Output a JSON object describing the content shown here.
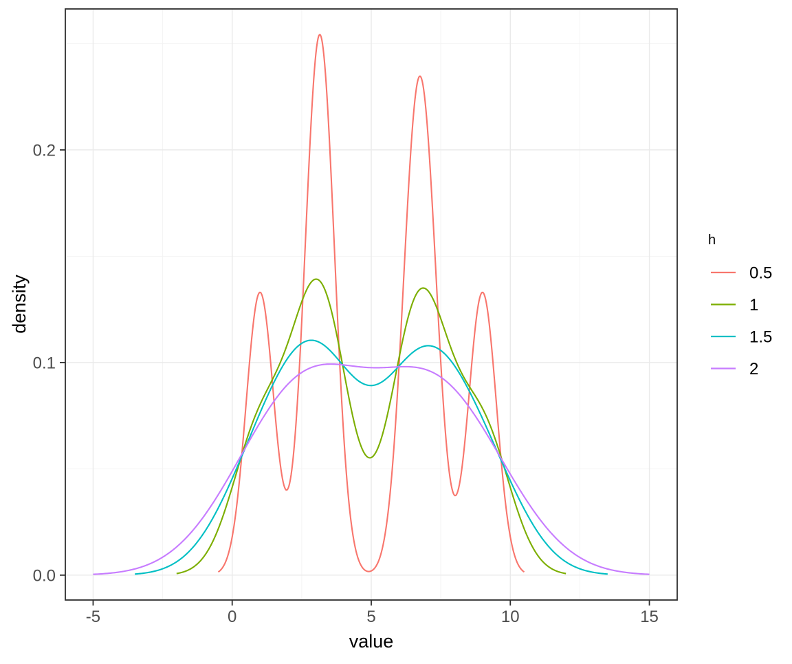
{
  "chart_data": {
    "type": "line",
    "title": "",
    "xlabel": "value",
    "ylabel": "density",
    "xlim": [
      -6,
      16
    ],
    "ylim": [
      -0.0117,
      0.2663
    ],
    "x_major_ticks": [
      -5,
      0,
      5,
      10,
      15
    ],
    "x_tick_labels": [
      "-5",
      "0",
      "5",
      "10",
      "15"
    ],
    "x_minor_ticks": [
      -2.5,
      2.5,
      7.5,
      12.5
    ],
    "y_major_ticks": [
      0,
      0.1,
      0.2
    ],
    "y_tick_labels": [
      "0.0",
      "0.1",
      "0.2"
    ],
    "y_minor_ticks": [
      0.05,
      0.15,
      0.25
    ],
    "grid": "major+minor",
    "legend": {
      "title": "h",
      "position": "right",
      "entries": [
        {
          "label": "0.5",
          "color": "#F8766D"
        },
        {
          "label": "1",
          "color": "#7CAE00"
        },
        {
          "label": "1.5",
          "color": "#00BFC4"
        },
        {
          "label": "2",
          "color": "#C77CFF"
        }
      ]
    },
    "kde": {
      "kernel": "gaussian",
      "data_points": [
        1,
        3,
        3.3,
        6.5,
        7,
        9
      ],
      "series": [
        {
          "label": "0.5",
          "h": 0.5,
          "color": "#F8766D",
          "x_range": [
            -0.5,
            10.5
          ],
          "peaks_xy": [
            [
              1.0,
              0.133
            ],
            [
              3.15,
              0.254
            ],
            [
              6.75,
              0.235
            ],
            [
              9.0,
              0.133
            ]
          ],
          "dips_xy": [
            [
              2.0,
              0.04
            ],
            [
              4.95,
              0.002
            ],
            [
              8.0,
              0.037
            ]
          ]
        },
        {
          "label": "1",
          "h": 1.0,
          "color": "#7CAE00",
          "x_range": [
            -2,
            12
          ],
          "peaks_xy": [
            [
              3.05,
              0.139
            ],
            [
              6.85,
              0.135
            ]
          ],
          "dips_xy": [
            [
              5.05,
              0.055
            ]
          ]
        },
        {
          "label": "1.5",
          "h": 1.5,
          "color": "#00BFC4",
          "x_range": [
            -3.5,
            13.5
          ],
          "peaks_xy": [
            [
              2.9,
              0.11
            ],
            [
              7.05,
              0.108
            ]
          ],
          "dips_xy": [
            [
              5.0,
              0.089
            ]
          ]
        },
        {
          "label": "2",
          "h": 2.0,
          "color": "#C77CFF",
          "x_range": [
            -5,
            15
          ],
          "peaks_xy": [
            [
              3.9,
              0.099
            ],
            [
              6.2,
              0.098
            ]
          ],
          "dips_xy": [
            [
              5.1,
              0.0976
            ]
          ]
        }
      ]
    },
    "colors": {
      "background": "#FFFFFF",
      "panel_background": "#FFFFFF",
      "grid_major": "#EAEAEA",
      "grid_minor": "#F3F3F3",
      "panel_border": "#2E2E2E",
      "tick_mark": "#2E2E2E",
      "tick_label": "#4D4D4D",
      "axis_title": "#000000"
    }
  }
}
